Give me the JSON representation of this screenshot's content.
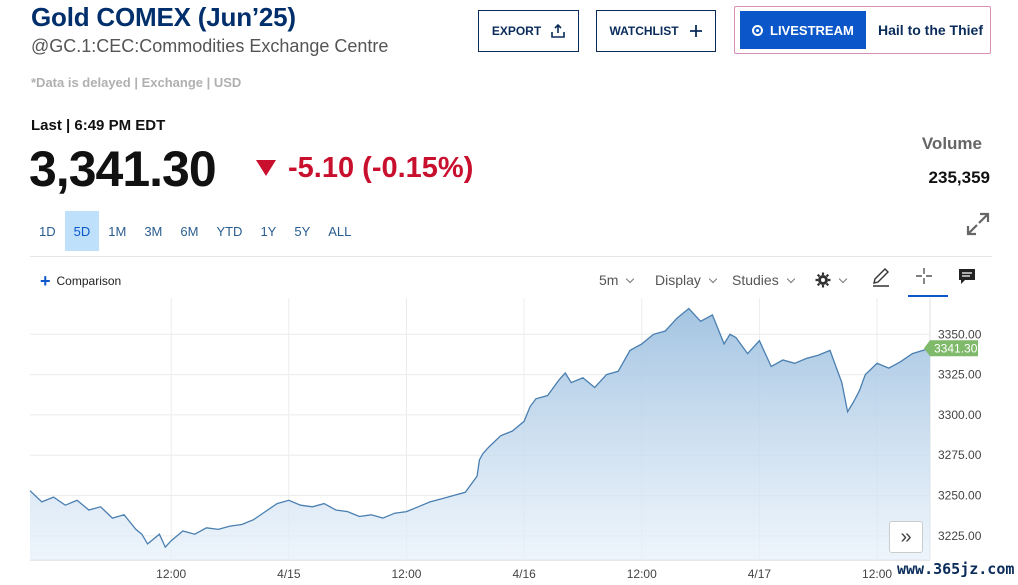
{
  "header": {
    "title": "Gold COMEX (Jun’25)",
    "symbol": "@GC.1:CEC:Commodities Exchange Centre",
    "delayed_note": "*Data is delayed | Exchange | USD",
    "export_label": "EXPORT",
    "watchlist_label": "WATCHLIST",
    "livestream_label": "LIVESTREAM",
    "livestream_show": "Hail to the Thief"
  },
  "quote": {
    "last_time": "Last | 6:49 PM EDT",
    "price": "3,341.30",
    "change": "-5.10 (-0.15%)",
    "volume_label": "Volume",
    "volume": "235,359"
  },
  "ranges": {
    "items": [
      "1D",
      "5D",
      "1M",
      "3M",
      "6M",
      "YTD",
      "1Y",
      "5Y",
      "ALL"
    ],
    "active": "5D"
  },
  "toolbar": {
    "comparison_label": "Comparison",
    "interval": "5m",
    "display_label": "Display",
    "studies_label": "Studies"
  },
  "watermark": "www.365jz.com",
  "colors": {
    "accent": "#0b57c9",
    "negative": "#c8102e",
    "title": "#002f6c",
    "line": "#4a7fb0",
    "last_tag": "#7fb96a"
  },
  "chart_data": {
    "type": "area",
    "ylim": [
      3210,
      3370
    ],
    "yticks": [
      3225.0,
      3250.0,
      3275.0,
      3300.0,
      3325.0,
      3350.0
    ],
    "ytick_labels": [
      "3225.00",
      "3250.00",
      "3275.00",
      "3300.00",
      "3325.00",
      "3350.00"
    ],
    "xticks": [
      {
        "label": "12:00",
        "pos": 1.0
      },
      {
        "label": "4/15",
        "pos": 2.0
      },
      {
        "label": "12:00",
        "pos": 3.0
      },
      {
        "label": "4/16",
        "pos": 4.0
      },
      {
        "label": "12:00",
        "pos": 5.0
      },
      {
        "label": "4/17",
        "pos": 6.0
      },
      {
        "label": "12:00",
        "pos": 7.0
      }
    ],
    "last_value": 3341.3,
    "last_label": "3341.30",
    "series": [
      {
        "x": [
          -0.2,
          -0.1,
          0.0,
          0.1,
          0.2,
          0.3,
          0.4,
          0.5,
          0.6,
          0.7,
          0.75,
          0.8,
          0.9,
          0.95,
          1.0,
          1.1,
          1.2,
          1.3,
          1.4,
          1.5,
          1.6,
          1.7,
          1.8,
          1.9,
          2.0,
          2.1,
          2.2,
          2.3,
          2.4,
          2.5,
          2.6,
          2.7,
          2.8,
          2.9,
          3.0,
          3.1,
          3.2,
          3.3,
          3.4,
          3.5,
          3.6,
          3.62,
          3.65,
          3.7,
          3.8,
          3.9,
          4.0,
          4.05,
          4.1,
          4.2,
          4.3,
          4.35,
          4.4,
          4.5,
          4.6,
          4.7,
          4.8,
          4.9,
          5.0,
          5.1,
          5.2,
          5.3,
          5.4,
          5.5,
          5.6,
          5.7,
          5.75,
          5.8,
          5.9,
          6.0,
          6.1,
          6.2,
          6.3,
          6.4,
          6.5,
          6.6,
          6.7,
          6.75,
          6.8,
          6.85,
          6.9,
          7.0,
          7.1,
          7.2,
          7.3,
          7.45
        ],
        "y": [
          3253,
          3246,
          3249,
          3244,
          3247,
          3241,
          3243,
          3236,
          3238,
          3229,
          3226,
          3220,
          3226,
          3218,
          3222,
          3228,
          3226,
          3230,
          3229,
          3231,
          3232,
          3235,
          3240,
          3245,
          3247,
          3244,
          3243,
          3245,
          3241,
          3240,
          3237,
          3238,
          3236,
          3239,
          3240,
          3243,
          3246,
          3248,
          3250,
          3252,
          3262,
          3272,
          3276,
          3280,
          3287,
          3290,
          3296,
          3305,
          3310,
          3312,
          3322,
          3326,
          3320,
          3323,
          3317,
          3325,
          3327,
          3340,
          3344,
          3350,
          3352,
          3360,
          3366,
          3358,
          3362,
          3344,
          3350,
          3348,
          3338,
          3346,
          3330,
          3334,
          3332,
          3335,
          3337,
          3340,
          3320,
          3302,
          3308,
          3315,
          3325,
          3332,
          3329,
          3333,
          3338,
          3341.3
        ]
      }
    ]
  }
}
